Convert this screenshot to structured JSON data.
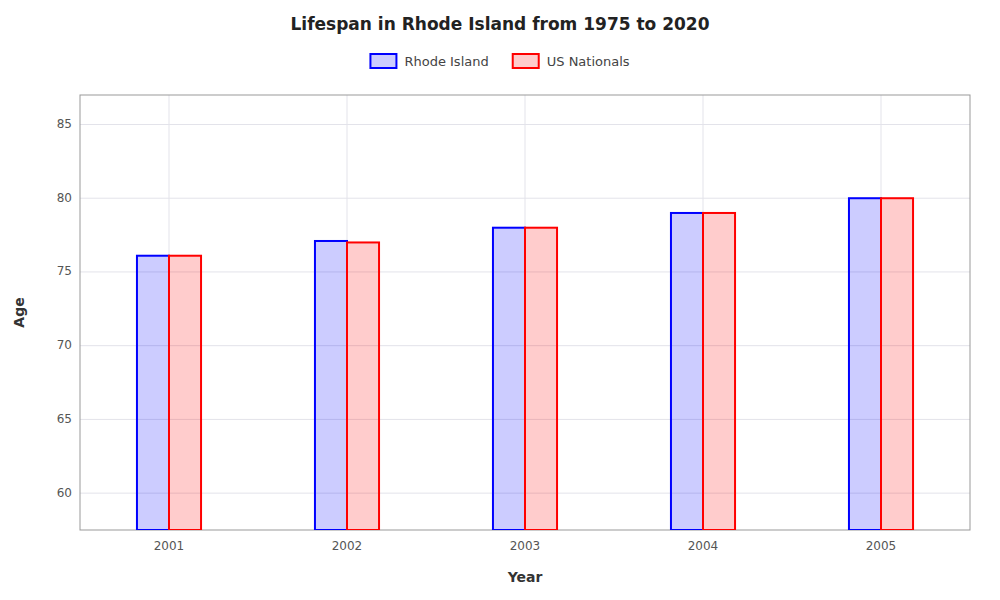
{
  "chart_data": {
    "type": "bar",
    "title": "Lifespan in Rhode Island from 1975 to 2020",
    "x_label": "Year",
    "y_label": "Age",
    "categories": [
      "2001",
      "2002",
      "2003",
      "2004",
      "2005"
    ],
    "series": [
      {
        "name": "Rhode Island",
        "color": "#0000ff",
        "values": [
          76.1,
          77.1,
          78.0,
          79.0,
          80.0
        ]
      },
      {
        "name": "US Nationals",
        "color": "#ff0000",
        "values": [
          76.1,
          77.0,
          78.0,
          79.0,
          80.0
        ]
      }
    ],
    "ylim": [
      57.5,
      87
    ],
    "yticks": [
      60,
      65,
      70,
      75,
      80,
      85
    ],
    "grid": true,
    "legend": "top"
  }
}
